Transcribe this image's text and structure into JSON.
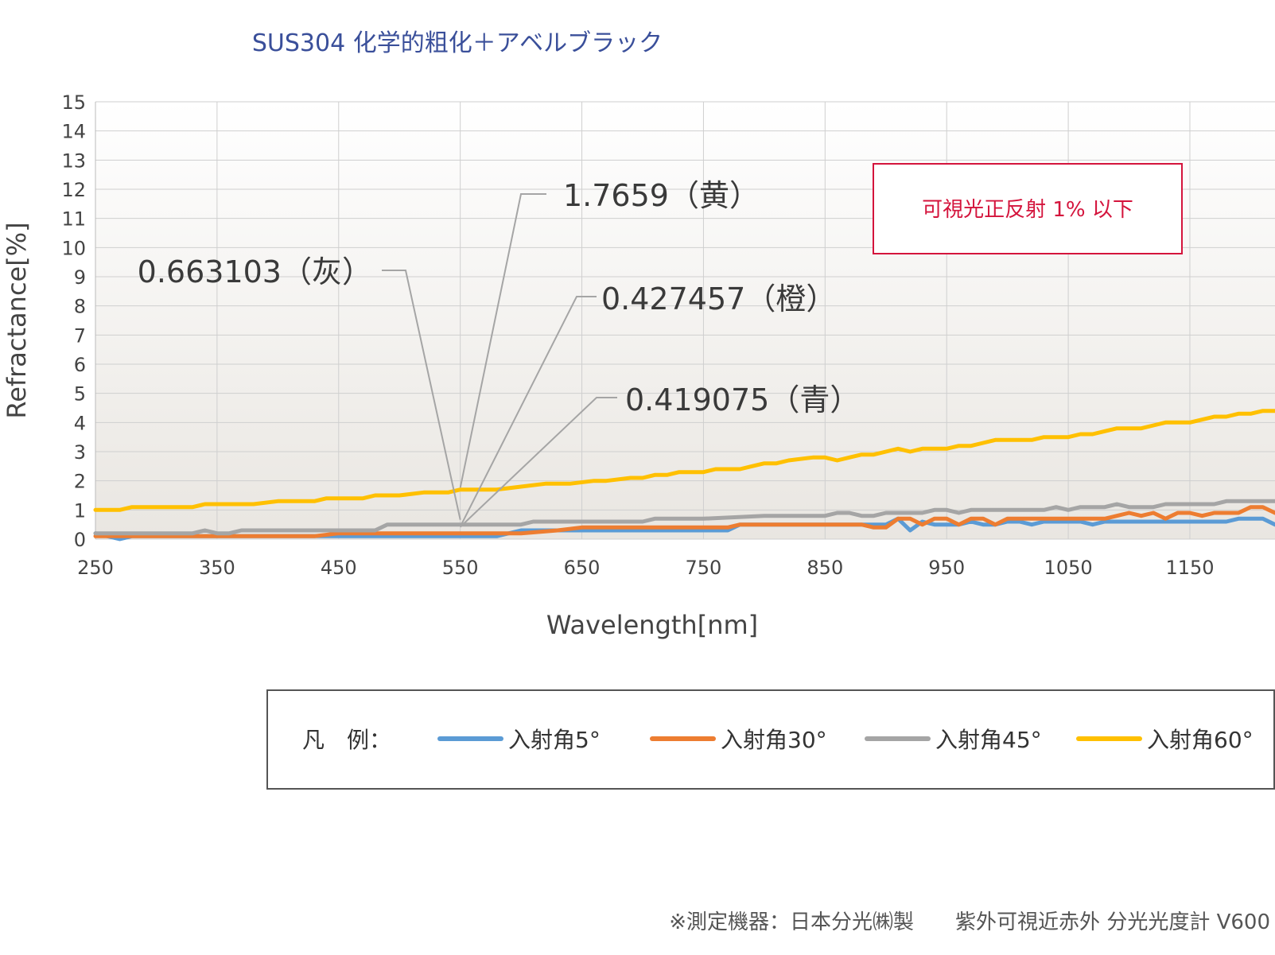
{
  "chart_data": {
    "type": "line",
    "title": "SUS304 化学的粗化＋アベルブラック",
    "xlabel": "Wavelength[nm]",
    "ylabel": "Refractance[%]",
    "xlim": [
      250,
      1220
    ],
    "ylim": [
      0,
      15
    ],
    "xticks": [
      250,
      350,
      450,
      550,
      650,
      750,
      850,
      950,
      1050,
      1150
    ],
    "yticks": [
      0,
      1,
      2,
      3,
      4,
      5,
      6,
      7,
      8,
      9,
      10,
      11,
      12,
      13,
      14,
      15
    ],
    "grid": true,
    "legend_position": "bottom",
    "legend_title": "凡　例：",
    "series": [
      {
        "name": "入射角5°",
        "color": "#5b9bd5",
        "x": [
          250,
          270,
          280,
          300,
          350,
          400,
          450,
          500,
          550,
          580,
          600,
          650,
          700,
          750,
          770,
          780,
          900,
          910,
          920,
          930,
          940,
          950,
          960,
          970,
          980,
          990,
          1000,
          1010,
          1020,
          1030,
          1040,
          1050,
          1060,
          1070,
          1080,
          1090,
          1100,
          1150,
          1180,
          1190,
          1200,
          1210,
          1220
        ],
        "y": [
          0.2,
          0.0,
          0.1,
          0.1,
          0.1,
          0.1,
          0.1,
          0.1,
          0.1,
          0.1,
          0.3,
          0.3,
          0.3,
          0.3,
          0.3,
          0.5,
          0.5,
          0.7,
          0.3,
          0.6,
          0.5,
          0.5,
          0.5,
          0.6,
          0.5,
          0.5,
          0.6,
          0.6,
          0.5,
          0.6,
          0.6,
          0.6,
          0.6,
          0.5,
          0.6,
          0.6,
          0.6,
          0.6,
          0.6,
          0.7,
          0.7,
          0.7,
          0.5
        ]
      },
      {
        "name": "入射角30°",
        "color": "#ed7d31",
        "x": [
          250,
          270,
          300,
          350,
          400,
          430,
          450,
          500,
          550,
          600,
          630,
          650,
          700,
          750,
          770,
          780,
          800,
          850,
          870,
          880,
          890,
          900,
          910,
          920,
          930,
          940,
          950,
          960,
          970,
          980,
          990,
          1000,
          1010,
          1020,
          1030,
          1040,
          1050,
          1060,
          1070,
          1080,
          1090,
          1100,
          1110,
          1120,
          1130,
          1140,
          1150,
          1160,
          1170,
          1180,
          1190,
          1200,
          1210,
          1220
        ],
        "y": [
          0.1,
          0.1,
          0.1,
          0.1,
          0.1,
          0.1,
          0.2,
          0.2,
          0.2,
          0.2,
          0.3,
          0.4,
          0.4,
          0.4,
          0.4,
          0.5,
          0.5,
          0.5,
          0.5,
          0.5,
          0.4,
          0.4,
          0.7,
          0.7,
          0.5,
          0.7,
          0.7,
          0.5,
          0.7,
          0.7,
          0.5,
          0.7,
          0.7,
          0.7,
          0.7,
          0.7,
          0.7,
          0.7,
          0.7,
          0.7,
          0.8,
          0.9,
          0.8,
          0.9,
          0.7,
          0.9,
          0.9,
          0.8,
          0.9,
          0.9,
          0.9,
          1.1,
          1.1,
          0.9
        ]
      },
      {
        "name": "入射角45°",
        "color": "#a5a5a5",
        "x": [
          250,
          270,
          300,
          330,
          340,
          350,
          360,
          370,
          380,
          400,
          450,
          480,
          490,
          500,
          550,
          600,
          610,
          620,
          650,
          700,
          710,
          720,
          750,
          800,
          850,
          860,
          870,
          880,
          890,
          900,
          910,
          920,
          930,
          940,
          950,
          960,
          970,
          980,
          990,
          1000,
          1010,
          1020,
          1030,
          1040,
          1050,
          1060,
          1070,
          1080,
          1090,
          1100,
          1110,
          1120,
          1130,
          1140,
          1150,
          1160,
          1170,
          1180,
          1190,
          1200,
          1210,
          1220
        ],
        "y": [
          0.2,
          0.2,
          0.2,
          0.2,
          0.3,
          0.2,
          0.2,
          0.3,
          0.3,
          0.3,
          0.3,
          0.3,
          0.5,
          0.5,
          0.5,
          0.5,
          0.6,
          0.6,
          0.6,
          0.6,
          0.7,
          0.7,
          0.7,
          0.8,
          0.8,
          0.9,
          0.9,
          0.8,
          0.8,
          0.9,
          0.9,
          0.9,
          0.9,
          1.0,
          1.0,
          0.9,
          1.0,
          1.0,
          1.0,
          1.0,
          1.0,
          1.0,
          1.0,
          1.1,
          1.0,
          1.1,
          1.1,
          1.1,
          1.2,
          1.1,
          1.1,
          1.1,
          1.2,
          1.2,
          1.2,
          1.2,
          1.2,
          1.3,
          1.3,
          1.3,
          1.3,
          1.3
        ]
      },
      {
        "name": "入射角60°",
        "color": "#ffc000",
        "x": [
          250,
          270,
          280,
          300,
          330,
          340,
          350,
          360,
          370,
          380,
          400,
          420,
          430,
          440,
          460,
          470,
          480,
          500,
          520,
          540,
          550,
          560,
          580,
          600,
          620,
          640,
          660,
          670,
          690,
          700,
          710,
          720,
          730,
          750,
          760,
          770,
          780,
          790,
          800,
          810,
          820,
          840,
          850,
          860,
          870,
          880,
          890,
          900,
          910,
          920,
          930,
          940,
          950,
          960,
          970,
          980,
          990,
          1000,
          1010,
          1020,
          1030,
          1040,
          1050,
          1060,
          1070,
          1080,
          1090,
          1100,
          1110,
          1120,
          1130,
          1140,
          1150,
          1160,
          1170,
          1180,
          1190,
          1200,
          1210,
          1220
        ],
        "y": [
          1.0,
          1.0,
          1.1,
          1.1,
          1.1,
          1.2,
          1.2,
          1.2,
          1.2,
          1.2,
          1.3,
          1.3,
          1.3,
          1.4,
          1.4,
          1.4,
          1.5,
          1.5,
          1.6,
          1.6,
          1.7,
          1.7,
          1.7,
          1.8,
          1.9,
          1.9,
          2.0,
          2.0,
          2.1,
          2.1,
          2.2,
          2.2,
          2.3,
          2.3,
          2.4,
          2.4,
          2.4,
          2.5,
          2.6,
          2.6,
          2.7,
          2.8,
          2.8,
          2.7,
          2.8,
          2.9,
          2.9,
          3.0,
          3.1,
          3.0,
          3.1,
          3.1,
          3.1,
          3.2,
          3.2,
          3.3,
          3.4,
          3.4,
          3.4,
          3.4,
          3.5,
          3.5,
          3.5,
          3.6,
          3.6,
          3.7,
          3.8,
          3.8,
          3.8,
          3.9,
          4.0,
          4.0,
          4.0,
          4.1,
          4.2,
          4.2,
          4.3,
          4.3,
          4.4,
          4.4
        ]
      }
    ],
    "annotations": [
      {
        "text": "1.7659（黄）",
        "x": 550,
        "y": 1.7659,
        "color": "#a5a5a5"
      },
      {
        "text": "0.663103（灰）",
        "x": 550,
        "y": 0.663103,
        "color": "#a5a5a5"
      },
      {
        "text": "0.427457（橙）",
        "x": 550,
        "y": 0.427457,
        "color": "#a5a5a5"
      },
      {
        "text": "0.419075（青）",
        "x": 550,
        "y": 0.419075,
        "color": "#a5a5a5"
      }
    ],
    "callout": {
      "text": "可視光正反射 1% 以下",
      "color": "#d4143c"
    }
  },
  "footnote": "※測定機器：日本分光㈱製　　紫外可視近赤外 分光光度計 V600"
}
